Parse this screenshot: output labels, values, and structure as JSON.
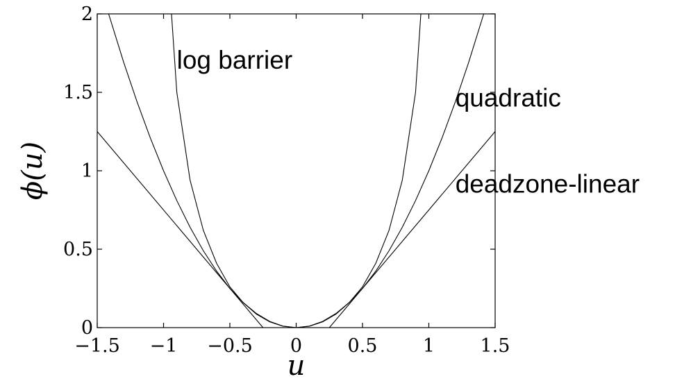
{
  "chart_data": {
    "type": "line",
    "title": "",
    "xlabel": "u",
    "ylabel": "ϕ(u)",
    "xlim": [
      -1.5,
      1.5
    ],
    "ylim": [
      0,
      2
    ],
    "grid": false,
    "x_ticks": [
      -1.5,
      -1,
      -0.5,
      0,
      0.5,
      1,
      1.5
    ],
    "x_tick_labels": [
      "−1.5",
      "−1",
      "−0.5",
      "0",
      "0.5",
      "1",
      "1.5"
    ],
    "y_ticks": [
      0,
      0.5,
      1,
      1.5,
      2
    ],
    "y_tick_labels": [
      "0",
      "0.5",
      "1",
      "1.5",
      "2"
    ],
    "series": [
      {
        "name": "log barrier",
        "x": [
          -0.94,
          -0.9,
          -0.8,
          -0.7,
          -0.6,
          -0.5,
          -0.4,
          -0.3,
          -0.2,
          -0.1,
          0,
          0.1,
          0.2,
          0.3,
          0.4,
          0.5,
          0.6,
          0.7,
          0.8,
          0.9,
          0.94
        ],
        "y": [
          2.0,
          1.5,
          0.94,
          0.62,
          0.41,
          0.26,
          0.16,
          0.086,
          0.037,
          0.009,
          0,
          0.009,
          0.037,
          0.086,
          0.16,
          0.26,
          0.41,
          0.62,
          0.94,
          1.5,
          2.0
        ]
      },
      {
        "name": "quadratic",
        "x": [
          -1.414,
          -1.3,
          -1.2,
          -1.1,
          -1.0,
          -0.9,
          -0.8,
          -0.7,
          -0.6,
          -0.5,
          -0.4,
          -0.3,
          -0.2,
          -0.1,
          0,
          0.1,
          0.2,
          0.3,
          0.4,
          0.5,
          0.6,
          0.7,
          0.8,
          0.9,
          1.0,
          1.1,
          1.2,
          1.3,
          1.414
        ],
        "y": [
          2.0,
          1.69,
          1.44,
          1.21,
          1.0,
          0.81,
          0.64,
          0.49,
          0.36,
          0.25,
          0.16,
          0.09,
          0.04,
          0.01,
          0,
          0.01,
          0.04,
          0.09,
          0.16,
          0.25,
          0.36,
          0.49,
          0.64,
          0.81,
          1.0,
          1.21,
          1.44,
          1.69,
          2.0
        ]
      },
      {
        "name": "deadzone-linear",
        "x": [
          -1.5,
          -0.25,
          0.25,
          1.5
        ],
        "y": [
          1.25,
          0,
          0,
          1.25
        ]
      }
    ],
    "annotations": [
      {
        "text": "log barrier",
        "x": -0.9,
        "y": 1.65
      },
      {
        "text": "quadratic",
        "x": 1.2,
        "y": 1.41
      },
      {
        "text": "deadzone-linear",
        "x": 1.2,
        "y": 0.86
      }
    ]
  }
}
